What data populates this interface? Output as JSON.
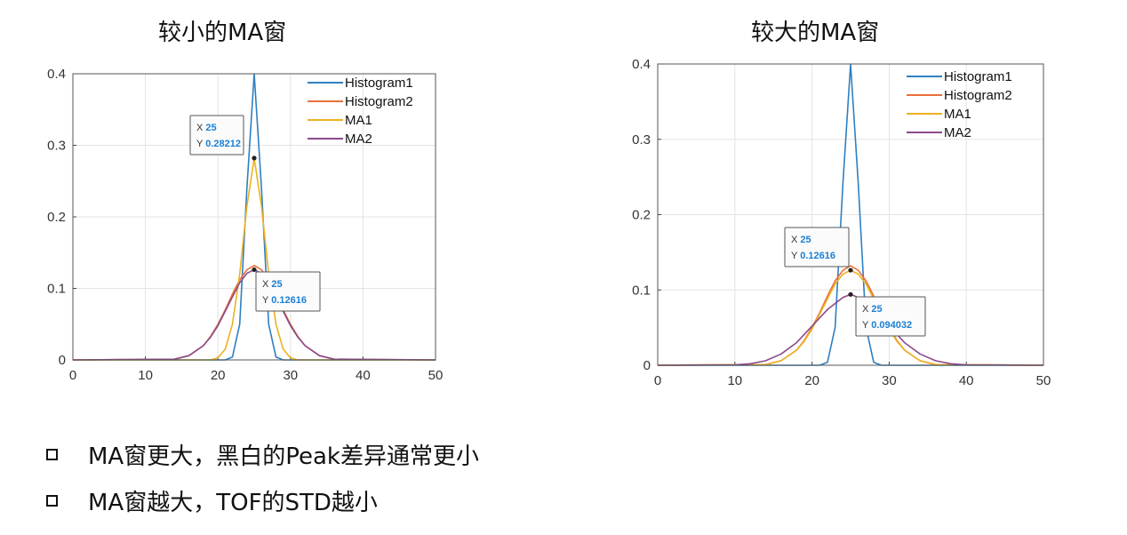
{
  "chart_data": [
    {
      "type": "line",
      "title": "较小的MA窗",
      "xlim": [
        0,
        50
      ],
      "ylim": [
        0,
        0.4
      ],
      "xticks": [
        "0",
        "10",
        "20",
        "30",
        "40",
        "50"
      ],
      "yticks": [
        "0",
        "0.1",
        "0.2",
        "0.3",
        "0.4"
      ],
      "grid": true,
      "legend_position": "top-right",
      "series": [
        {
          "name": "Histogram1",
          "color": "#2f7fc1",
          "x": [
            0,
            21,
            22,
            23,
            24,
            25,
            26,
            27,
            28,
            29,
            50
          ],
          "y": [
            0,
            0,
            0.004,
            0.05,
            0.24,
            0.4,
            0.24,
            0.05,
            0.004,
            0,
            0
          ]
        },
        {
          "name": "Histogram2",
          "color": "#e8703a",
          "x": [
            0,
            14,
            16,
            18,
            19,
            20,
            21,
            22,
            23,
            24,
            25,
            26,
            27,
            28,
            29,
            30,
            31,
            32,
            34,
            36,
            50
          ],
          "y": [
            0,
            0.001,
            0.006,
            0.02,
            0.033,
            0.05,
            0.07,
            0.092,
            0.112,
            0.126,
            0.132,
            0.126,
            0.112,
            0.092,
            0.07,
            0.05,
            0.033,
            0.02,
            0.006,
            0.001,
            0
          ]
        },
        {
          "name": "MA1",
          "color": "#edb120",
          "x": [
            0,
            19,
            20,
            21,
            22,
            23,
            24,
            25,
            26,
            27,
            28,
            29,
            30,
            31,
            50
          ],
          "y": [
            0,
            0,
            0.003,
            0.015,
            0.05,
            0.12,
            0.215,
            0.282,
            0.215,
            0.12,
            0.05,
            0.015,
            0.003,
            0,
            0
          ]
        },
        {
          "name": "MA2",
          "color": "#8c4a8c",
          "x": [
            0,
            14,
            16,
            18,
            19,
            20,
            21,
            22,
            23,
            24,
            25,
            26,
            27,
            28,
            29,
            30,
            31,
            32,
            34,
            36,
            50
          ],
          "y": [
            0,
            0.001,
            0.006,
            0.02,
            0.032,
            0.048,
            0.068,
            0.088,
            0.108,
            0.121,
            0.12616,
            0.121,
            0.108,
            0.088,
            0.068,
            0.048,
            0.032,
            0.02,
            0.006,
            0.001,
            0
          ]
        }
      ],
      "datatips": [
        {
          "x": 25,
          "y": 0.28212,
          "x_text": "25",
          "y_text": "0.28212"
        },
        {
          "x": 25,
          "y": 0.12616,
          "x_text": "25",
          "y_text": "0.12616"
        }
      ]
    },
    {
      "type": "line",
      "title": "较大的MA窗",
      "xlim": [
        0,
        50
      ],
      "ylim": [
        0,
        0.4
      ],
      "xticks": [
        "0",
        "10",
        "20",
        "30",
        "40",
        "50"
      ],
      "yticks": [
        "0",
        "0.1",
        "0.2",
        "0.3",
        "0.4"
      ],
      "grid": true,
      "legend_position": "top-right",
      "series": [
        {
          "name": "Histogram1",
          "color": "#2f7fc1",
          "x": [
            0,
            21,
            22,
            23,
            24,
            25,
            26,
            27,
            28,
            29,
            50
          ],
          "y": [
            0,
            0,
            0.004,
            0.05,
            0.24,
            0.4,
            0.24,
            0.05,
            0.004,
            0,
            0
          ]
        },
        {
          "name": "Histogram2",
          "color": "#e8703a",
          "x": [
            0,
            14,
            16,
            18,
            19,
            20,
            21,
            22,
            23,
            24,
            25,
            26,
            27,
            28,
            29,
            30,
            31,
            32,
            34,
            36,
            50
          ],
          "y": [
            0,
            0.001,
            0.006,
            0.02,
            0.033,
            0.05,
            0.07,
            0.092,
            0.112,
            0.126,
            0.132,
            0.126,
            0.112,
            0.092,
            0.07,
            0.05,
            0.033,
            0.02,
            0.006,
            0.001,
            0
          ]
        },
        {
          "name": "MA1",
          "color": "#edb120",
          "x": [
            0,
            14,
            16,
            18,
            19,
            20,
            21,
            22,
            23,
            24,
            25,
            26,
            27,
            28,
            29,
            30,
            31,
            32,
            34,
            36,
            50
          ],
          "y": [
            0,
            0.001,
            0.006,
            0.02,
            0.032,
            0.048,
            0.068,
            0.088,
            0.108,
            0.121,
            0.12616,
            0.121,
            0.108,
            0.088,
            0.068,
            0.048,
            0.032,
            0.02,
            0.006,
            0.001,
            0
          ]
        },
        {
          "name": "MA2",
          "color": "#8c4a8c",
          "x": [
            0,
            10,
            12,
            14,
            16,
            18,
            20,
            22,
            24,
            25,
            26,
            28,
            30,
            32,
            34,
            36,
            38,
            40,
            50
          ],
          "y": [
            0,
            0.0005,
            0.002,
            0.006,
            0.015,
            0.03,
            0.052,
            0.074,
            0.09,
            0.094032,
            0.09,
            0.074,
            0.052,
            0.03,
            0.015,
            0.006,
            0.002,
            0.0005,
            0
          ]
        }
      ],
      "datatips": [
        {
          "x": 25,
          "y": 0.12616,
          "x_text": "25",
          "y_text": "0.12616"
        },
        {
          "x": 25,
          "y": 0.094032,
          "x_text": "25",
          "y_text": "0.094032"
        }
      ]
    }
  ],
  "tip_labels": {
    "x": "X",
    "y": "Y"
  },
  "bullets": [
    "MA窗更大，黑白的Peak差异通常更小",
    "MA窗越大，TOF的STD越小"
  ]
}
